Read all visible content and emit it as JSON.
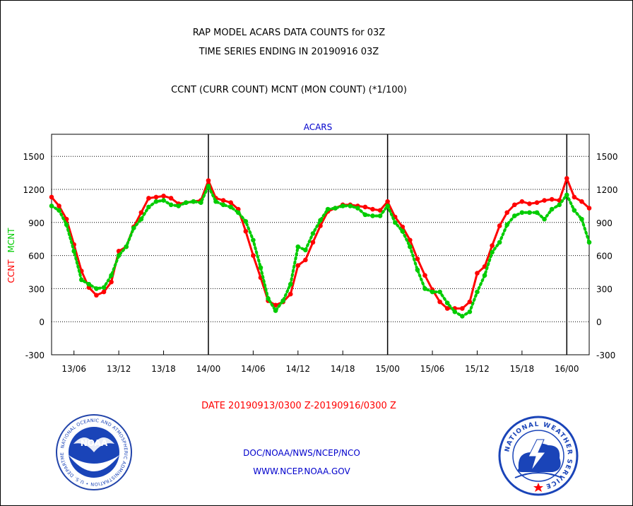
{
  "header": {
    "title_line1": "RAP MODEL ACARS DATA COUNTS for 03Z",
    "title_line2": "TIME SERIES ENDING IN 20190916 03Z",
    "subtitle": "CCNT (CURR COUNT) MCNT (MON COUNT) (*1/100)"
  },
  "chart_data": {
    "type": "line",
    "title": "ACARS",
    "ylabel_left": [
      "CCNT",
      "MCNT"
    ],
    "ylabel_left_colors": [
      "#ff0000",
      "#00cc00"
    ],
    "ylim": [
      -300,
      1700
    ],
    "yticks": [
      -300,
      0,
      300,
      600,
      900,
      1200,
      1500
    ],
    "grid": true,
    "xlim": [
      0,
      72
    ],
    "xticks": [
      {
        "x": 3,
        "label": "13/06"
      },
      {
        "x": 9,
        "label": "13/12"
      },
      {
        "x": 15,
        "label": "13/18"
      },
      {
        "x": 21,
        "label": "14/00"
      },
      {
        "x": 27,
        "label": "14/06"
      },
      {
        "x": 33,
        "label": "14/12"
      },
      {
        "x": 39,
        "label": "14/18"
      },
      {
        "x": 45,
        "label": "15/00"
      },
      {
        "x": 51,
        "label": "15/06"
      },
      {
        "x": 57,
        "label": "15/12"
      },
      {
        "x": 63,
        "label": "15/18"
      },
      {
        "x": 69,
        "label": "16/00"
      }
    ],
    "day_boundaries": [
      21,
      45,
      69
    ],
    "xlabel": "DATE 20190913/0300 Z-20190916/0300 Z",
    "series": [
      {
        "name": "CCNT",
        "color": "#ff0000",
        "style": "solid",
        "values": [
          1130,
          1050,
          930,
          700,
          460,
          310,
          240,
          270,
          360,
          640,
          680,
          860,
          990,
          1120,
          1130,
          1140,
          1120,
          1070,
          1080,
          1090,
          1100,
          1280,
          1120,
          1100,
          1080,
          1020,
          820,
          600,
          400,
          190,
          150,
          180,
          250,
          510,
          560,
          720,
          870,
          1000,
          1030,
          1060,
          1060,
          1050,
          1040,
          1020,
          1010,
          1090,
          950,
          860,
          740,
          570,
          420,
          290,
          180,
          120,
          120,
          120,
          180,
          440,
          500,
          690,
          870,
          990,
          1060,
          1090,
          1070,
          1080,
          1100,
          1110,
          1100,
          1300,
          1130,
          1090,
          1030
        ]
      },
      {
        "name": "MCNT",
        "color": "#00cc00",
        "style": "dotted",
        "values": [
          1050,
          1010,
          880,
          640,
          380,
          340,
          300,
          310,
          420,
          600,
          680,
          850,
          930,
          1040,
          1090,
          1100,
          1060,
          1050,
          1080,
          1090,
          1080,
          1230,
          1090,
          1060,
          1040,
          990,
          910,
          740,
          490,
          210,
          100,
          190,
          340,
          680,
          650,
          800,
          920,
          1020,
          1030,
          1050,
          1050,
          1030,
          970,
          960,
          960,
          1050,
          900,
          820,
          680,
          470,
          300,
          270,
          270,
          170,
          90,
          50,
          90,
          270,
          420,
          630,
          720,
          880,
          960,
          990,
          990,
          990,
          930,
          1020,
          1060,
          1150,
          1010,
          930,
          720
        ]
      }
    ]
  },
  "footer": {
    "agency_line": "DOC/NOAA/NWS/NCEP/NCO",
    "website": "WWW.NCEP.NOAA.GOV",
    "noaa_logo_text": "NOAA",
    "noaa_ring_text": "NATIONAL OCEANIC AND ATMOSPHERIC ADMINISTRATION • U.S. DEPARTMENT OF COMMERCE •",
    "nws_ring_text": "NATIONAL WEATHER SERVICE"
  },
  "colors": {
    "title": "#000000",
    "axis_text": "#000000",
    "acars_label": "#0000cc",
    "date_label": "#ff0000",
    "footer_text": "#0000cc"
  }
}
